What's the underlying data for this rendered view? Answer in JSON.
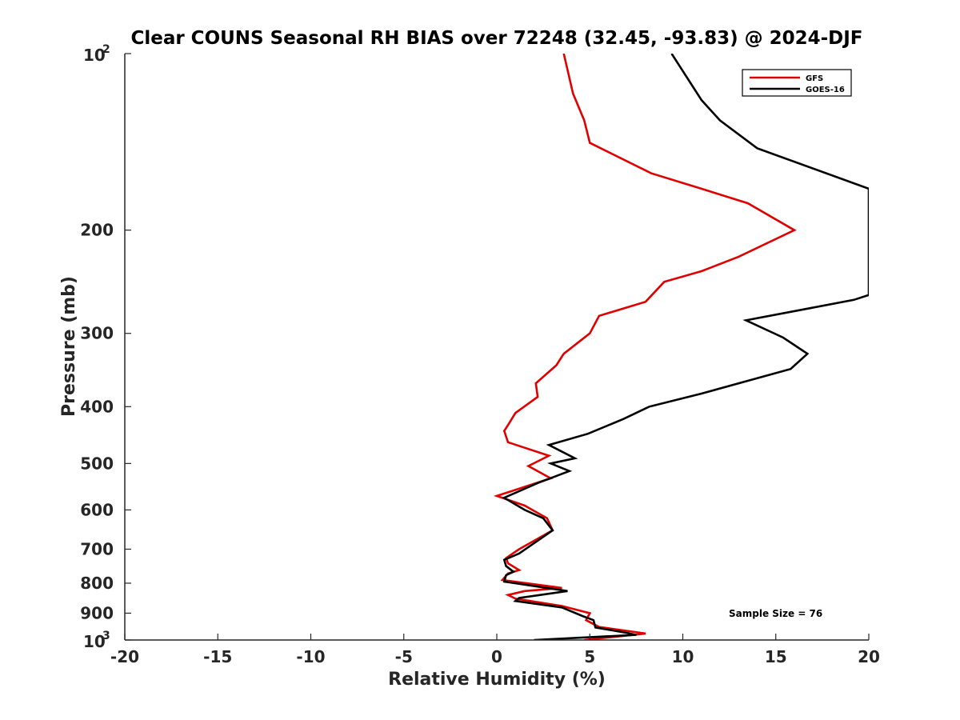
{
  "chart_data": {
    "type": "line",
    "title": "Clear COUNS Seasonal RH BIAS over 72248 (32.45, -93.83) @ 2024-DJF",
    "xlabel": "Relative Humidity (%)",
    "ylabel": "Pressure (mb)",
    "xlim": [
      -20,
      20
    ],
    "ylim": [
      100,
      1000
    ],
    "yscale": "log",
    "x_ticks": [
      -20,
      -15,
      -10,
      -5,
      0,
      5,
      10,
      15,
      20
    ],
    "x_tick_labels": [
      "-20",
      "-15",
      "-10",
      "-5",
      "0",
      "5",
      "10",
      "15",
      "20"
    ],
    "y_ticks": [
      200,
      300,
      400,
      500,
      600,
      700,
      800,
      900
    ],
    "y_tick_labels": [
      "200",
      "300",
      "400",
      "500",
      "600",
      "700",
      "800",
      "900"
    ],
    "y_end_ticks": [
      {
        "value": 100,
        "base": "10",
        "exp": "2"
      },
      {
        "value": 1000,
        "base": "10",
        "exp": "3"
      }
    ],
    "legend_position": "top-right",
    "annotation": "Sample Size = 76",
    "series": [
      {
        "name": "GFS",
        "color": "#e00000",
        "points": [
          [
            4.7,
            1000
          ],
          [
            8.0,
            975
          ],
          [
            5.5,
            950
          ],
          [
            4.8,
            925
          ],
          [
            5.0,
            900
          ],
          [
            3.5,
            875
          ],
          [
            1.0,
            850
          ],
          [
            0.6,
            838
          ],
          [
            1.5,
            825
          ],
          [
            3.5,
            815
          ],
          [
            0.3,
            790
          ],
          [
            0.6,
            770
          ],
          [
            1.2,
            760
          ],
          [
            0.6,
            740
          ],
          [
            0.5,
            725
          ],
          [
            1.2,
            700
          ],
          [
            3.0,
            650
          ],
          [
            2.7,
            620
          ],
          [
            1.5,
            590
          ],
          [
            0.0,
            568
          ],
          [
            2.9,
            530
          ],
          [
            1.7,
            505
          ],
          [
            2.8,
            485
          ],
          [
            0.6,
            460
          ],
          [
            0.4,
            440
          ],
          [
            0.6,
            430
          ],
          [
            1.0,
            410
          ],
          [
            2.2,
            385
          ],
          [
            2.1,
            365
          ],
          [
            3.2,
            340
          ],
          [
            3.6,
            325
          ],
          [
            5.0,
            300
          ],
          [
            5.5,
            280
          ],
          [
            8.0,
            265
          ],
          [
            9.0,
            245
          ],
          [
            11.0,
            235
          ],
          [
            13.0,
            222
          ],
          [
            16.0,
            200
          ],
          [
            13.5,
            180
          ],
          [
            11.0,
            170
          ],
          [
            8.3,
            160
          ],
          [
            5.0,
            142
          ],
          [
            4.7,
            130
          ],
          [
            4.1,
            117
          ],
          [
            3.6,
            100
          ]
        ]
      },
      {
        "name": "GOES-16",
        "color": "#000000",
        "points": [
          [
            2.0,
            1000
          ],
          [
            7.5,
            980
          ],
          [
            6.8,
            970
          ],
          [
            5.3,
            952
          ],
          [
            5.2,
            925
          ],
          [
            4.6,
            910
          ],
          [
            3.5,
            880
          ],
          [
            1.0,
            858
          ],
          [
            1.2,
            848
          ],
          [
            3.8,
            825
          ],
          [
            0.4,
            795
          ],
          [
            0.5,
            775
          ],
          [
            0.9,
            765
          ],
          [
            0.5,
            748
          ],
          [
            0.4,
            730
          ],
          [
            1.2,
            712
          ],
          [
            3.0,
            650
          ],
          [
            2.5,
            620
          ],
          [
            1.5,
            600
          ],
          [
            0.4,
            572
          ],
          [
            2.2,
            540
          ],
          [
            3.9,
            515
          ],
          [
            2.9,
            500
          ],
          [
            4.2,
            490
          ],
          [
            2.8,
            465
          ],
          [
            4.9,
            445
          ],
          [
            6.8,
            420
          ],
          [
            8.2,
            400
          ],
          [
            11.0,
            380
          ],
          [
            15.8,
            345
          ],
          [
            16.7,
            325
          ],
          [
            15.4,
            305
          ],
          [
            13.4,
            285
          ],
          [
            19.2,
            263
          ],
          [
            20.0,
            258
          ],
          [
            20.0,
            170
          ],
          [
            14.0,
            145
          ],
          [
            12.0,
            130
          ],
          [
            11.0,
            120
          ],
          [
            9.4,
            100
          ]
        ]
      }
    ]
  }
}
